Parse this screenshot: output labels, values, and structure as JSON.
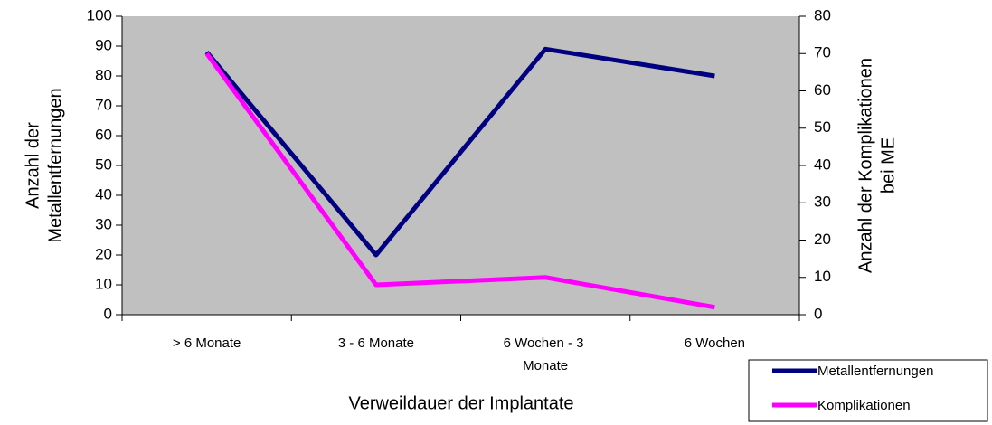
{
  "chart_data": {
    "type": "line",
    "categories": [
      "> 6 Monate",
      "3 - 6 Monate",
      "6 Wochen - 3 Monate",
      "6 Wochen"
    ],
    "series": [
      {
        "name": "Metallentfernungen",
        "color": "#000080",
        "values": [
          88,
          20,
          89,
          80
        ]
      },
      {
        "name": "Komplikationen",
        "color": "#ff00ff",
        "values": [
          70,
          8,
          10,
          2
        ],
        "axis": "y2"
      }
    ],
    "ylim": [
      0,
      100
    ],
    "yticks": [
      0,
      10,
      20,
      30,
      40,
      50,
      60,
      70,
      80,
      90,
      100
    ],
    "y2lim": [
      0,
      80
    ],
    "y2ticks": [
      0,
      10,
      20,
      30,
      40,
      50,
      60,
      70,
      80
    ],
    "x_label": "Verweildauer der Implantate",
    "y_label": [
      "Anzahl der",
      "Metallentfernungen"
    ],
    "y2_label": [
      "Anzahl der Komplikationen",
      "bei ME"
    ],
    "plot_background": "#c0c0c0",
    "legend": "lower right"
  }
}
